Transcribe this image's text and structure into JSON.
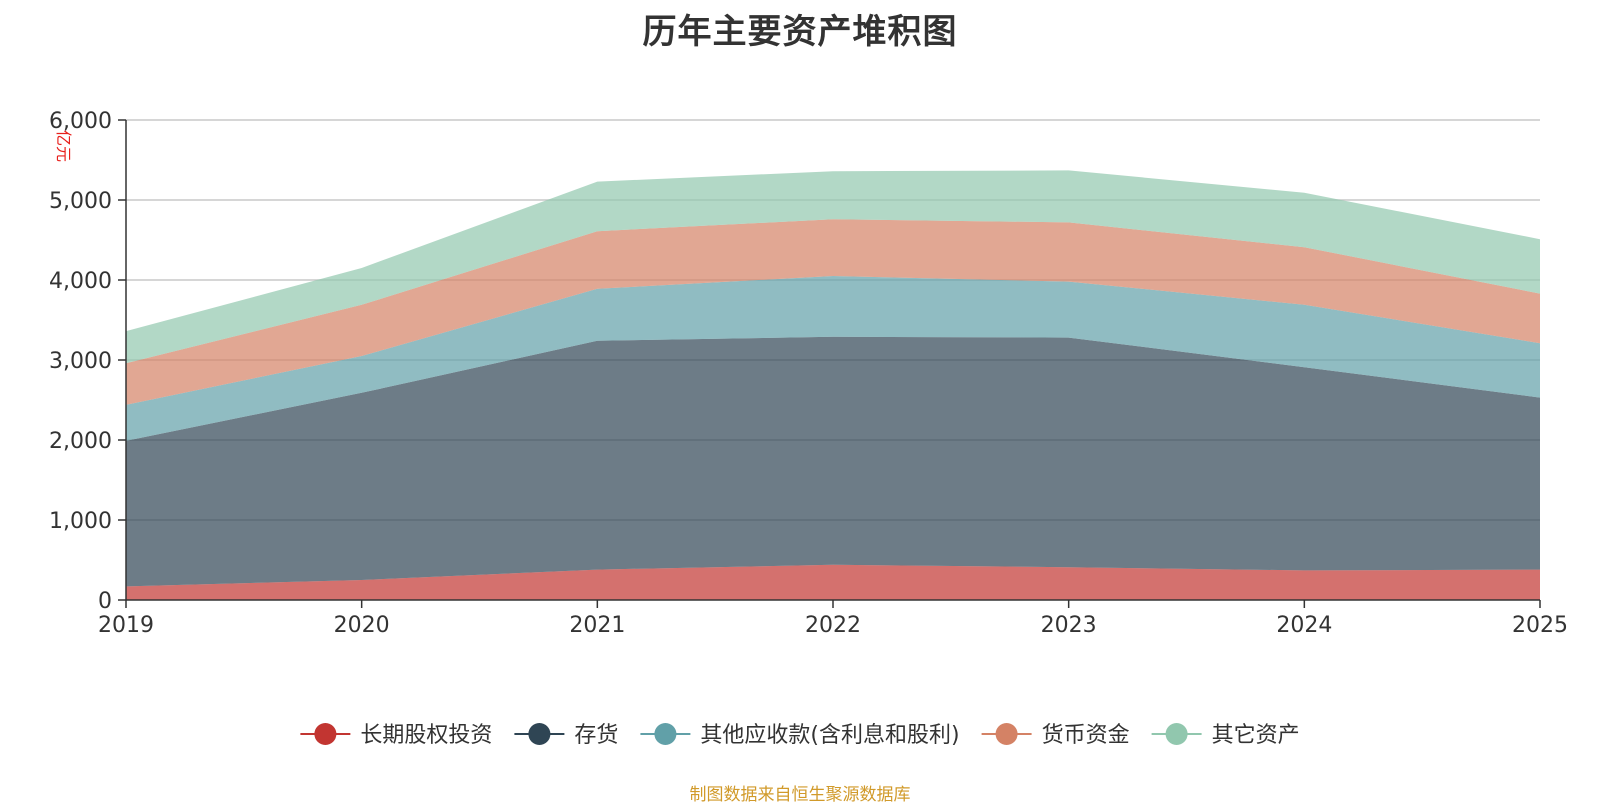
{
  "chart_data": {
    "type": "area",
    "title": "历年主要资产堆积图",
    "unit_label": "亿元",
    "x": [
      "2019",
      "2020",
      "2021",
      "2022",
      "2023",
      "2024",
      "2025"
    ],
    "ylim": [
      0,
      6000
    ],
    "yticks": [
      0,
      1000,
      2000,
      3000,
      4000,
      5000,
      6000
    ],
    "ytick_labels": [
      "0",
      "1,000",
      "2,000",
      "3,000",
      "4,000",
      "5,000",
      "6,000"
    ],
    "stacked": true,
    "grid": true,
    "legend_position": "bottom",
    "series": [
      {
        "name": "长期股权投资",
        "color": "#c23531",
        "values": [
          170,
          250,
          380,
          440,
          410,
          370,
          380
        ]
      },
      {
        "name": "存货",
        "color": "#2f4554",
        "values": [
          1820,
          2340,
          2860,
          2850,
          2870,
          2540,
          2150
        ]
      },
      {
        "name": "其他应收款(含利息和股利)",
        "color": "#61a0a8",
        "values": [
          450,
          460,
          650,
          760,
          700,
          780,
          680
        ]
      },
      {
        "name": "货币资金",
        "color": "#d48265",
        "values": [
          520,
          640,
          720,
          710,
          740,
          720,
          620
        ]
      },
      {
        "name": "其它资产",
        "color": "#91c7ae",
        "values": [
          400,
          460,
          620,
          600,
          650,
          680,
          680
        ]
      }
    ]
  },
  "footer": {
    "source": "制图数据来自恒生聚源数据库"
  }
}
